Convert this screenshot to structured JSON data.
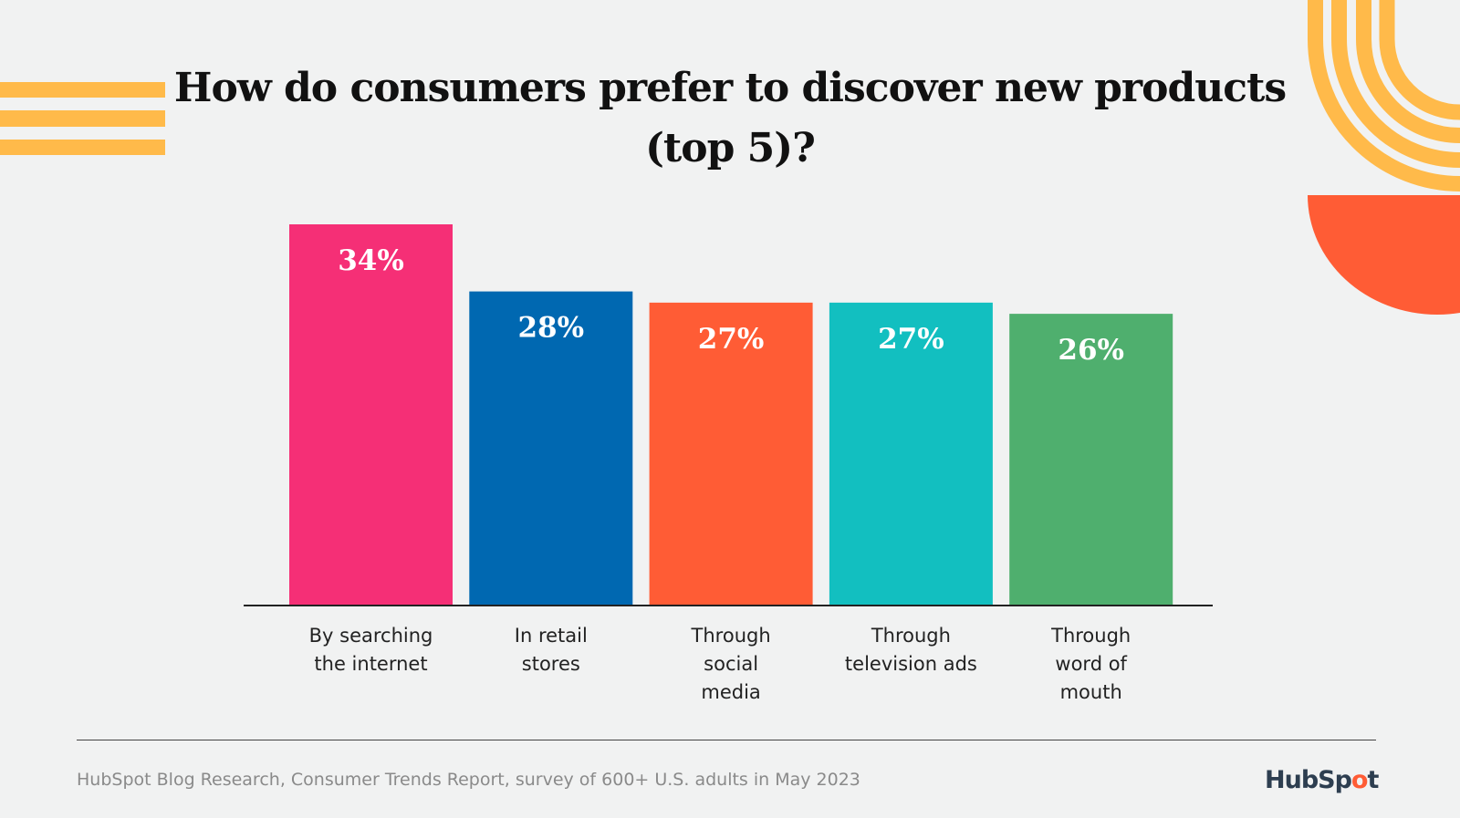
{
  "chart_data": {
    "type": "bar",
    "title": "How do consumers prefer to discover new products (top 5)?",
    "title_lines": [
      "How do consumers prefer to discover new products",
      "(top 5)?"
    ],
    "categories": [
      "By searching the internet",
      "In retail stores",
      "Through social media",
      "Through television ads",
      "Through word of mouth"
    ],
    "category_lines": [
      [
        "By searching",
        "the internet"
      ],
      [
        "In retail",
        "stores"
      ],
      [
        "Through",
        "social",
        "media"
      ],
      [
        "Through",
        "television ads"
      ],
      [
        "Through",
        "word of",
        "mouth"
      ]
    ],
    "values": [
      34,
      28,
      27,
      27,
      26
    ],
    "data_labels": [
      "34%",
      "28%",
      "27%",
      "27%",
      "26%"
    ],
    "colors": [
      "#F52F76",
      "#0068B1",
      "#FF5C35",
      "#12BFC0",
      "#4FAF6E"
    ],
    "xlabel": "",
    "ylabel": "",
    "ylim": [
      0,
      34
    ],
    "grid": false,
    "legend": "none"
  },
  "footer": {
    "source": "HubSpot Blog Research, Consumer Trends Report, survey of 600+ U.S. adults in May 2023",
    "logo": "HubSpot"
  },
  "decor_colors": {
    "stripes": "#FFBA4A",
    "half_circle": "#FF5C35"
  }
}
